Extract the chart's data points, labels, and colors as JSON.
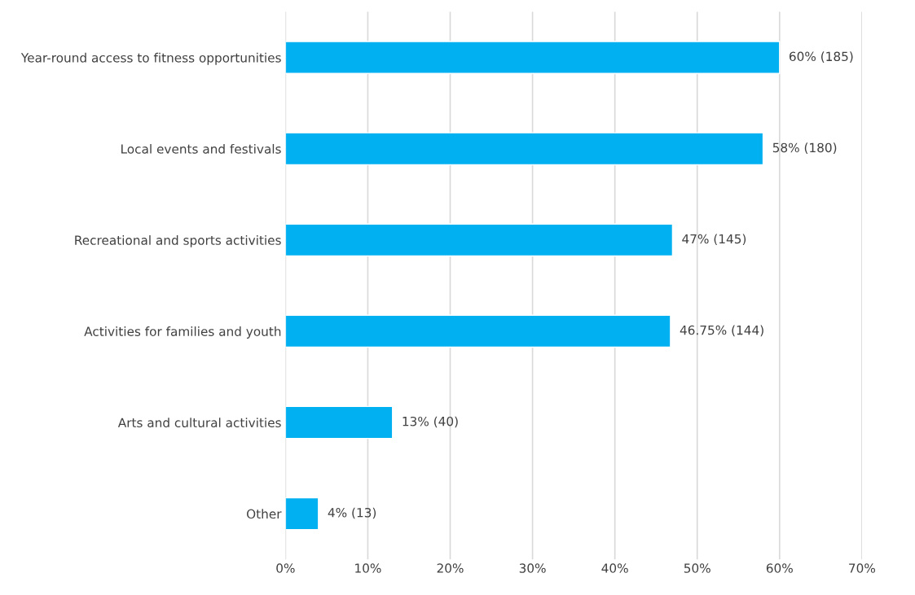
{
  "chart_data": {
    "type": "bar",
    "orientation": "horizontal",
    "categories": [
      "Year-round access to fitness opportunities",
      "Local events and festivals",
      "Recreational and sports activities",
      "Activities for families and youth",
      "Arts and cultural activities",
      "Other"
    ],
    "values": [
      60,
      58,
      47,
      46.75,
      13,
      4
    ],
    "value_labels": [
      "60% (185)",
      "58% (180)",
      "47% (145)",
      "46.75% (144)",
      "13% (40)",
      "4% (13)"
    ],
    "color": "#00b0f0",
    "xlim": [
      0,
      70
    ],
    "xticks": [
      {
        "value": 0,
        "label": "0%"
      },
      {
        "value": 10,
        "label": "10%"
      },
      {
        "value": 20,
        "label": "20%"
      },
      {
        "value": 30,
        "label": "30%"
      },
      {
        "value": 40,
        "label": "40%"
      },
      {
        "value": 50,
        "label": "50%"
      },
      {
        "value": 60,
        "label": "60%"
      },
      {
        "value": 70,
        "label": "70%"
      }
    ],
    "grid": "x",
    "legend": false
  }
}
